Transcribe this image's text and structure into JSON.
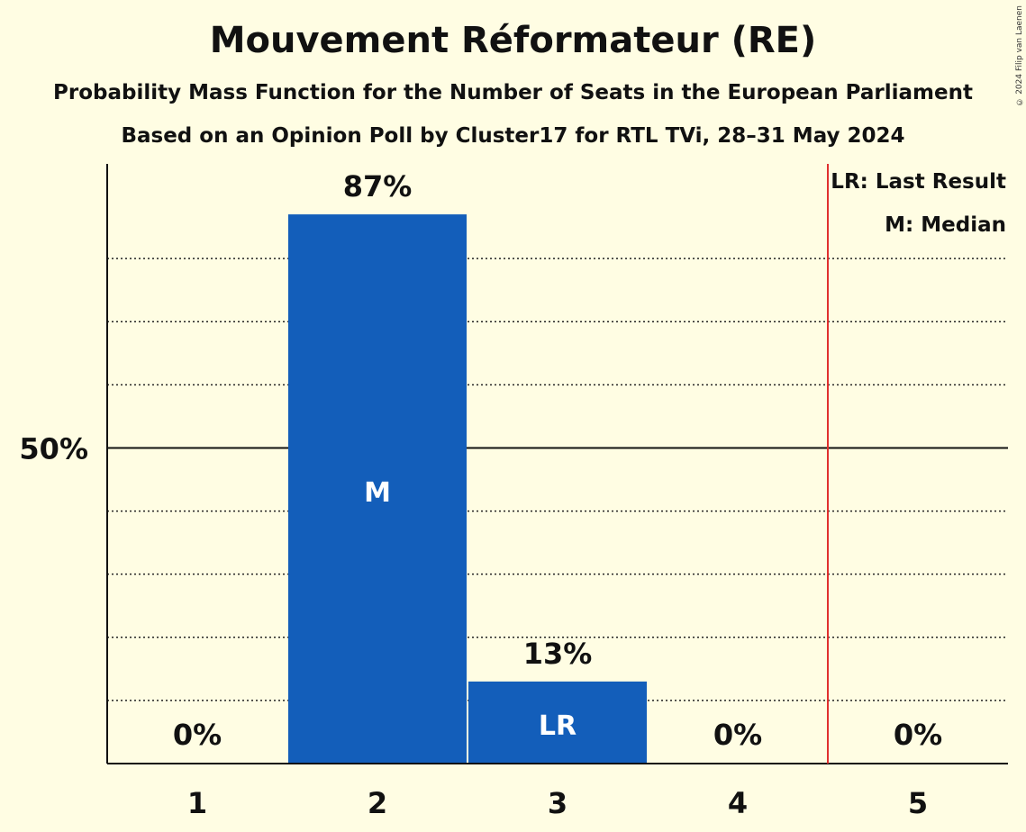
{
  "title": "Mouvement Réformateur (RE)",
  "subtitle1": "Probability Mass Function for the Number of Seats in the European Parliament",
  "subtitle2": "Based on an Opinion Poll by Cluster17 for RTL TVi, 28–31 May 2024",
  "copyright": "© 2024 Filip van Laenen",
  "colors": {
    "bar": "#135EBA",
    "background": "#FFFDE3",
    "last_result_line": "#E0302F"
  },
  "chart_data": {
    "type": "bar",
    "categories": [
      "1",
      "2",
      "3",
      "4",
      "5"
    ],
    "values": [
      0,
      87,
      13,
      0,
      0
    ],
    "value_labels": [
      "0%",
      "87%",
      "13%",
      "0%",
      "0%"
    ],
    "bar_markers": [
      "",
      "M",
      "LR",
      "",
      ""
    ],
    "ylim": [
      0,
      95
    ],
    "y_tick_label": "50%",
    "y_tick_value": 50,
    "gridlines": [
      10,
      20,
      30,
      40,
      60,
      70,
      80
    ],
    "last_result_line_after": 4.5,
    "legend": [
      "LR: Last Result",
      "M: Median"
    ],
    "legend_position": "top-right"
  }
}
